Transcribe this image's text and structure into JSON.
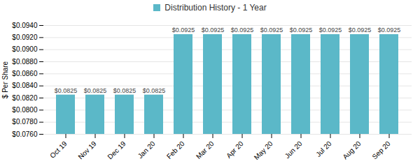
{
  "chart_data": {
    "type": "bar",
    "ylabel": "$ Per Share",
    "categories": [
      "Oct 19",
      "Nov 19",
      "Dec 19",
      "Jan 20",
      "Feb 20",
      "Mar 20",
      "Apr 20",
      "May 20",
      "Jun 20",
      "Jul 20",
      "Aug 20",
      "Sep 20"
    ],
    "series": [
      {
        "name": "Distribution History - 1 Year",
        "color": "#5BB8C8",
        "values": [
          0.0825,
          0.0825,
          0.0825,
          0.0825,
          0.0925,
          0.0925,
          0.0925,
          0.0925,
          0.0925,
          0.0925,
          0.0925,
          0.0925
        ],
        "value_labels": [
          "$0.0825",
          "$0.0825",
          "$0.0825",
          "$0.0825",
          "$0.0925",
          "$0.0925",
          "$0.0925",
          "$0.0925",
          "$0.0925",
          "$0.0925",
          "$0.0925",
          "$0.0925"
        ]
      }
    ],
    "ylim": [
      0.076,
      0.094
    ],
    "yticks": [
      {
        "value": 0.076,
        "label": "$0.0760"
      },
      {
        "value": 0.078,
        "label": "$0.0780"
      },
      {
        "value": 0.08,
        "label": "$0.0800"
      },
      {
        "value": 0.082,
        "label": "$0.0820"
      },
      {
        "value": 0.084,
        "label": "$0.0840"
      },
      {
        "value": 0.086,
        "label": "$0.0860"
      },
      {
        "value": 0.088,
        "label": "$0.0880"
      },
      {
        "value": 0.09,
        "label": "$0.0900"
      },
      {
        "value": 0.092,
        "label": "$0.0920"
      },
      {
        "value": 0.094,
        "label": "$0.0940"
      }
    ],
    "grid": true,
    "data_labels": true,
    "legend": "top"
  }
}
